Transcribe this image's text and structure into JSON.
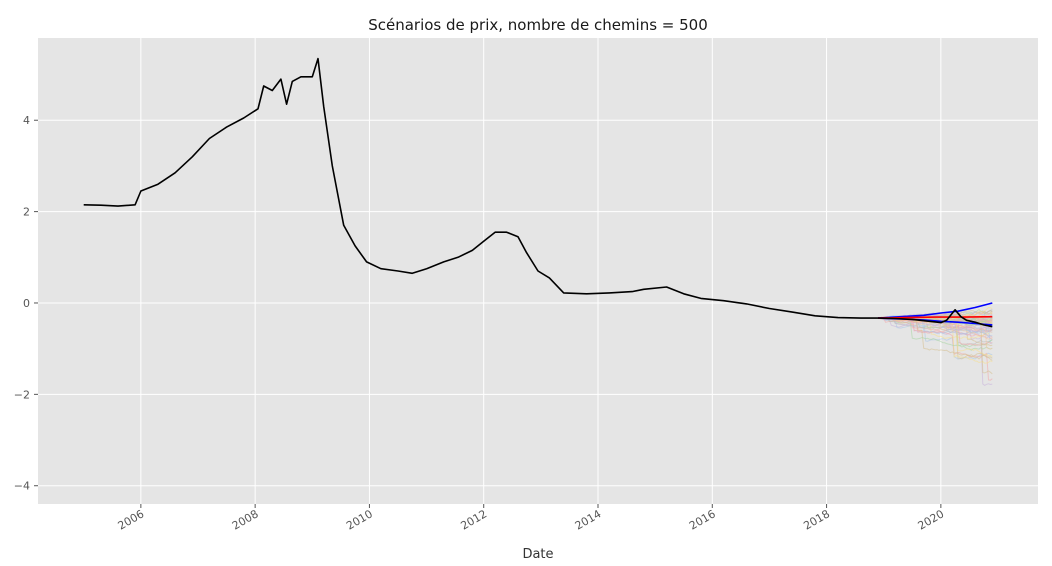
{
  "chart_data": {
    "type": "line",
    "title": "Scénarios de prix, nombre de chemins = 500",
    "xlabel": "Date",
    "ylabel": "",
    "grid": true,
    "style": "ggplot",
    "xlim": [
      2004.2,
      2021.7
    ],
    "ylim": [
      -4.4,
      5.8
    ],
    "x_ticks": [
      2006,
      2008,
      2010,
      2012,
      2014,
      2016,
      2018,
      2020
    ],
    "x_tick_labels": [
      "2006",
      "2008",
      "2010",
      "2012",
      "2014",
      "2016",
      "2018",
      "2020"
    ],
    "y_ticks": [
      -4,
      -2,
      0,
      2,
      4
    ],
    "y_tick_labels": [
      "−4",
      "−2",
      "0",
      "2",
      "4"
    ],
    "historical_series": {
      "color": "#000000",
      "points": [
        [
          2005.0,
          2.15
        ],
        [
          2005.3,
          2.14
        ],
        [
          2005.6,
          2.12
        ],
        [
          2005.9,
          2.15
        ],
        [
          2006.0,
          2.45
        ],
        [
          2006.3,
          2.6
        ],
        [
          2006.6,
          2.85
        ],
        [
          2006.9,
          3.2
        ],
        [
          2007.2,
          3.6
        ],
        [
          2007.5,
          3.85
        ],
        [
          2007.8,
          4.05
        ],
        [
          2008.05,
          4.25
        ],
        [
          2008.15,
          4.75
        ],
        [
          2008.3,
          4.65
        ],
        [
          2008.45,
          4.9
        ],
        [
          2008.55,
          4.35
        ],
        [
          2008.65,
          4.85
        ],
        [
          2008.8,
          4.95
        ],
        [
          2009.0,
          4.95
        ],
        [
          2009.1,
          5.35
        ],
        [
          2009.2,
          4.3
        ],
        [
          2009.35,
          3.0
        ],
        [
          2009.55,
          1.7
        ],
        [
          2009.75,
          1.25
        ],
        [
          2009.95,
          0.9
        ],
        [
          2010.2,
          0.75
        ],
        [
          2010.5,
          0.7
        ],
        [
          2010.75,
          0.65
        ],
        [
          2011.0,
          0.75
        ],
        [
          2011.3,
          0.9
        ],
        [
          2011.55,
          1.0
        ],
        [
          2011.8,
          1.15
        ],
        [
          2012.0,
          1.35
        ],
        [
          2012.2,
          1.55
        ],
        [
          2012.4,
          1.55
        ],
        [
          2012.6,
          1.45
        ],
        [
          2012.75,
          1.1
        ],
        [
          2012.95,
          0.7
        ],
        [
          2013.15,
          0.55
        ],
        [
          2013.4,
          0.22
        ],
        [
          2013.8,
          0.2
        ],
        [
          2014.2,
          0.22
        ],
        [
          2014.6,
          0.25
        ],
        [
          2014.8,
          0.3
        ],
        [
          2015.2,
          0.35
        ],
        [
          2015.5,
          0.2
        ],
        [
          2015.8,
          0.1
        ],
        [
          2016.2,
          0.05
        ],
        [
          2016.6,
          -0.02
        ],
        [
          2017.0,
          -0.12
        ],
        [
          2017.4,
          -0.2
        ],
        [
          2017.8,
          -0.28
        ],
        [
          2018.2,
          -0.32
        ],
        [
          2018.6,
          -0.33
        ],
        [
          2018.9,
          -0.33
        ]
      ]
    },
    "simulation_paths": {
      "count": 500,
      "start": [
        2018.9,
        -0.33
      ],
      "end_x": 2020.9,
      "colors": [
        "#a9c6e8",
        "#f4c9a0",
        "#a8d5a2",
        "#f2a7a7",
        "#c9b3dd",
        "#d6c08f",
        "#bdbdbd",
        "#f7e08c"
      ]
    },
    "summary_series": [
      {
        "color": "#0000ff",
        "points": [
          [
            2018.9,
            -0.33
          ],
          [
            2019.3,
            -0.3
          ],
          [
            2019.7,
            -0.27
          ],
          [
            2020.0,
            -0.22
          ],
          [
            2020.3,
            -0.18
          ],
          [
            2020.6,
            -0.1
          ],
          [
            2020.9,
            0.0
          ]
        ]
      },
      {
        "color": "#0000ff",
        "points": [
          [
            2018.9,
            -0.33
          ],
          [
            2019.3,
            -0.35
          ],
          [
            2019.7,
            -0.37
          ],
          [
            2020.0,
            -0.4
          ],
          [
            2020.3,
            -0.42
          ],
          [
            2020.6,
            -0.45
          ],
          [
            2020.9,
            -0.48
          ]
        ]
      },
      {
        "color": "#ff0000",
        "points": [
          [
            2018.9,
            -0.33
          ],
          [
            2019.4,
            -0.32
          ],
          [
            2019.9,
            -0.31
          ],
          [
            2020.4,
            -0.31
          ],
          [
            2020.9,
            -0.3
          ]
        ]
      },
      {
        "color": "#000000",
        "points": [
          [
            2018.9,
            -0.33
          ],
          [
            2019.2,
            -0.34
          ],
          [
            2019.5,
            -0.36
          ],
          [
            2019.8,
            -0.4
          ],
          [
            2020.0,
            -0.43
          ],
          [
            2020.1,
            -0.38
          ],
          [
            2020.25,
            -0.15
          ],
          [
            2020.35,
            -0.3
          ],
          [
            2020.45,
            -0.38
          ],
          [
            2020.6,
            -0.42
          ],
          [
            2020.75,
            -0.48
          ],
          [
            2020.9,
            -0.52
          ]
        ]
      }
    ]
  }
}
